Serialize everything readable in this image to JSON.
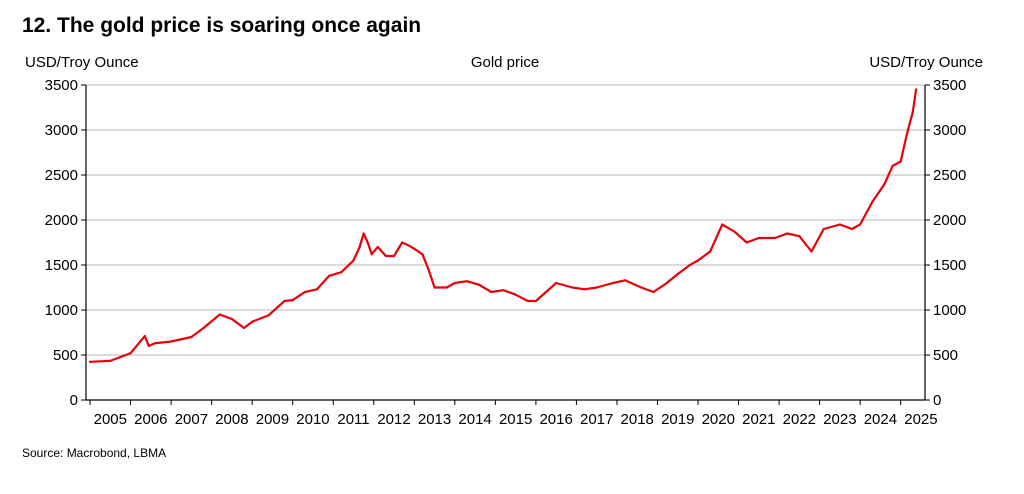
{
  "title": "12.  The gold price is soaring once again",
  "source": "Source: Macrobond, LBMA",
  "chart_data": {
    "type": "line",
    "title": "Gold price",
    "ylabel_left": "USD/Troy Ounce",
    "ylabel_right": "USD/Troy Ounce",
    "ylim": [
      0,
      3500
    ],
    "yticks": [
      0,
      500,
      1000,
      1500,
      2000,
      2500,
      3000,
      3500
    ],
    "xlim": [
      2004.9,
      2025.6
    ],
    "xticks": [
      "2005",
      "2006",
      "2007",
      "2008",
      "2009",
      "2010",
      "2011",
      "2012",
      "2013",
      "2014",
      "2015",
      "2016",
      "2017",
      "2018",
      "2019",
      "2020",
      "2021",
      "2022",
      "2023",
      "2024",
      "2025"
    ],
    "grid": true,
    "series": [
      {
        "name": "Gold price",
        "color": "#e8000b",
        "x": [
          2005.0,
          2005.5,
          2006.0,
          2006.35,
          2006.45,
          2006.6,
          2007.0,
          2007.5,
          2007.8,
          2008.2,
          2008.5,
          2008.8,
          2009.0,
          2009.4,
          2009.8,
          2010.0,
          2010.3,
          2010.6,
          2010.9,
          2011.2,
          2011.5,
          2011.65,
          2011.75,
          2011.85,
          2011.95,
          2012.1,
          2012.3,
          2012.5,
          2012.7,
          2012.85,
          2013.0,
          2013.2,
          2013.35,
          2013.5,
          2013.8,
          2014.0,
          2014.3,
          2014.6,
          2014.9,
          2015.2,
          2015.5,
          2015.8,
          2016.0,
          2016.5,
          2016.9,
          2017.2,
          2017.5,
          2017.9,
          2018.2,
          2018.6,
          2018.9,
          2019.2,
          2019.5,
          2019.8,
          2020.0,
          2020.3,
          2020.6,
          2020.9,
          2021.2,
          2021.5,
          2021.9,
          2022.2,
          2022.5,
          2022.8,
          2023.1,
          2023.5,
          2023.8,
          2024.0,
          2024.3,
          2024.6,
          2024.8,
          2025.0,
          2025.15,
          2025.3,
          2025.38
        ],
        "values": [
          425,
          435,
          520,
          710,
          600,
          630,
          650,
          700,
          800,
          950,
          900,
          800,
          870,
          940,
          1100,
          1110,
          1200,
          1230,
          1380,
          1420,
          1550,
          1700,
          1850,
          1750,
          1620,
          1700,
          1600,
          1600,
          1750,
          1720,
          1680,
          1620,
          1450,
          1250,
          1250,
          1300,
          1320,
          1280,
          1200,
          1220,
          1170,
          1100,
          1100,
          1300,
          1250,
          1230,
          1250,
          1300,
          1330,
          1250,
          1200,
          1290,
          1400,
          1500,
          1550,
          1650,
          1950,
          1870,
          1750,
          1800,
          1800,
          1850,
          1820,
          1650,
          1900,
          1950,
          1900,
          1950,
          2200,
          2400,
          2600,
          2650,
          2950,
          3200,
          3450
        ]
      }
    ]
  }
}
